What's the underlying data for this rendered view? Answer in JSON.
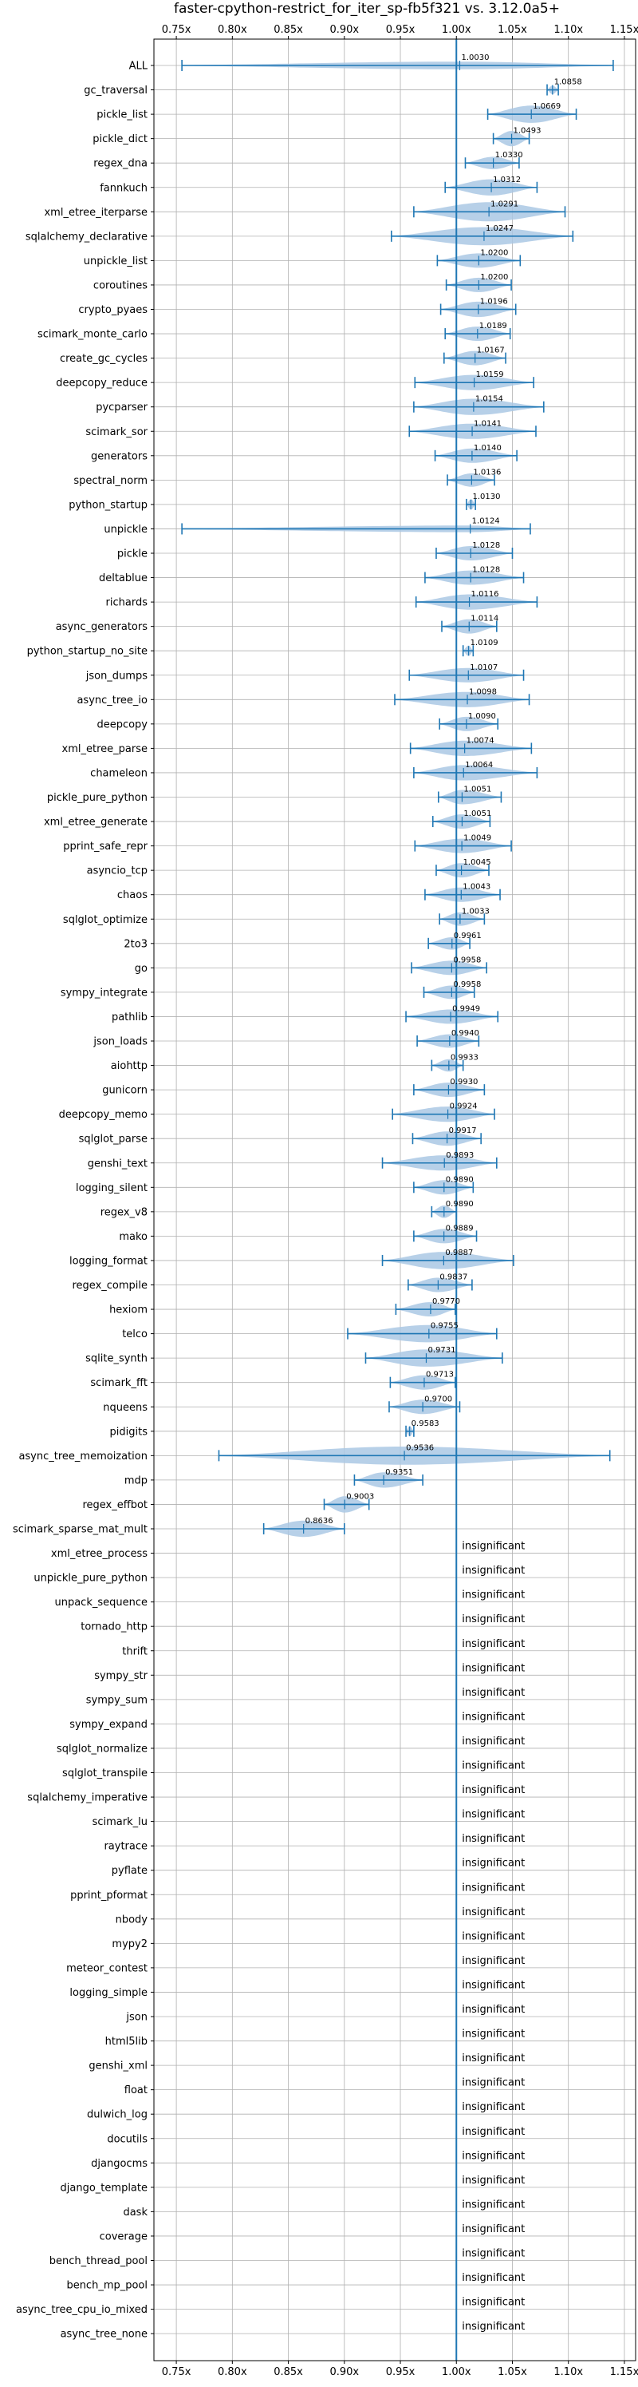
{
  "chart_data": {
    "type": "violin",
    "title": "faster-cpython-restrict_for_iter_sp-fb5f321 vs. 3.12.0a5+",
    "xlabel": "",
    "ylabel": "",
    "xlim": [
      0.73,
      1.16
    ],
    "x_ticks": [
      0.75,
      0.8,
      0.85,
      0.9,
      0.95,
      1.0,
      1.05,
      1.1,
      1.15
    ],
    "x_tick_labels": [
      "0.75x",
      "0.80x",
      "0.85x",
      "0.90x",
      "0.95x",
      "1.00x",
      "1.05x",
      "1.10x",
      "1.15x"
    ],
    "reference_line": 1.0,
    "grid": true,
    "colors": {
      "line": "#1f77b4",
      "fill": "#aac8e4",
      "grid": "#b0b0b0"
    },
    "insignificant_label": "insignificant",
    "benchmarks": [
      {
        "name": "ALL",
        "value": "1.0030",
        "mean": 1.003,
        "min": 0.755,
        "max": 1.14,
        "width": 0.35
      },
      {
        "name": "gc_traversal",
        "value": "1.0858",
        "mean": 1.0858,
        "min": 1.081,
        "max": 1.091,
        "width": 0.4
      },
      {
        "name": "pickle_list",
        "value": "1.0669",
        "mean": 1.0669,
        "min": 1.028,
        "max": 1.107,
        "width": 0.85
      },
      {
        "name": "pickle_dict",
        "value": "1.0493",
        "mean": 1.0493,
        "min": 1.033,
        "max": 1.065,
        "width": 0.75
      },
      {
        "name": "regex_dna",
        "value": "1.0330",
        "mean": 1.033,
        "min": 1.008,
        "max": 1.056,
        "width": 0.6
      },
      {
        "name": "fannkuch",
        "value": "1.0312",
        "mean": 1.0312,
        "min": 0.99,
        "max": 1.072,
        "width": 0.8
      },
      {
        "name": "xml_etree_iterparse",
        "value": "1.0291",
        "mean": 1.0291,
        "min": 0.962,
        "max": 1.097,
        "width": 0.95
      },
      {
        "name": "sqlalchemy_declarative",
        "value": "1.0247",
        "mean": 1.0247,
        "min": 0.942,
        "max": 1.104,
        "width": 0.9
      },
      {
        "name": "unpickle_list",
        "value": "1.0200",
        "mean": 1.02,
        "min": 0.983,
        "max": 1.057,
        "width": 0.7
      },
      {
        "name": "coroutines",
        "value": "1.0200",
        "mean": 1.02,
        "min": 0.991,
        "max": 1.049,
        "width": 0.7
      },
      {
        "name": "crypto_pyaes",
        "value": "1.0196",
        "mean": 1.0196,
        "min": 0.986,
        "max": 1.053,
        "width": 0.75
      },
      {
        "name": "scimark_monte_carlo",
        "value": "1.0189",
        "mean": 1.0189,
        "min": 0.99,
        "max": 1.048,
        "width": 0.7
      },
      {
        "name": "create_gc_cycles",
        "value": "1.0167",
        "mean": 1.0167,
        "min": 0.989,
        "max": 1.044,
        "width": 0.7
      },
      {
        "name": "deepcopy_reduce",
        "value": "1.0159",
        "mean": 1.0159,
        "min": 0.963,
        "max": 1.069,
        "width": 0.75
      },
      {
        "name": "pycparser",
        "value": "1.0154",
        "mean": 1.0154,
        "min": 0.962,
        "max": 1.078,
        "width": 0.8
      },
      {
        "name": "scimark_sor",
        "value": "1.0141",
        "mean": 1.0141,
        "min": 0.958,
        "max": 1.071,
        "width": 0.75
      },
      {
        "name": "generators",
        "value": "1.0140",
        "mean": 1.014,
        "min": 0.981,
        "max": 1.054,
        "width": 0.7
      },
      {
        "name": "spectral_norm",
        "value": "1.0136",
        "mean": 1.0136,
        "min": 0.992,
        "max": 1.034,
        "width": 0.65
      },
      {
        "name": "python_startup",
        "value": "1.0130",
        "mean": 1.013,
        "min": 1.009,
        "max": 1.017,
        "width": 0.5
      },
      {
        "name": "unpickle",
        "value": "1.0124",
        "mean": 1.0124,
        "min": 0.755,
        "max": 1.066,
        "width": 0.3
      },
      {
        "name": "pickle",
        "value": "1.0128",
        "mean": 1.0128,
        "min": 0.982,
        "max": 1.05,
        "width": 0.7
      },
      {
        "name": "deltablue",
        "value": "1.0128",
        "mean": 1.0128,
        "min": 0.972,
        "max": 1.06,
        "width": 0.7
      },
      {
        "name": "richards",
        "value": "1.0116",
        "mean": 1.0116,
        "min": 0.964,
        "max": 1.072,
        "width": 0.75
      },
      {
        "name": "async_generators",
        "value": "1.0114",
        "mean": 1.0114,
        "min": 0.987,
        "max": 1.036,
        "width": 0.7
      },
      {
        "name": "python_startup_no_site",
        "value": "1.0109",
        "mean": 1.0109,
        "min": 1.006,
        "max": 1.015,
        "width": 0.5
      },
      {
        "name": "json_dumps",
        "value": "1.0107",
        "mean": 1.0107,
        "min": 0.958,
        "max": 1.06,
        "width": 0.7
      },
      {
        "name": "async_tree_io",
        "value": "1.0098",
        "mean": 1.0098,
        "min": 0.945,
        "max": 1.065,
        "width": 0.75
      },
      {
        "name": "deepcopy",
        "value": "1.0090",
        "mean": 1.009,
        "min": 0.985,
        "max": 1.037,
        "width": 0.7
      },
      {
        "name": "xml_etree_parse",
        "value": "1.0074",
        "mean": 1.0074,
        "min": 0.959,
        "max": 1.067,
        "width": 0.75
      },
      {
        "name": "chameleon",
        "value": "1.0064",
        "mean": 1.0064,
        "min": 0.962,
        "max": 1.072,
        "width": 0.75
      },
      {
        "name": "pickle_pure_python",
        "value": "1.0051",
        "mean": 1.0051,
        "min": 0.984,
        "max": 1.04,
        "width": 0.7
      },
      {
        "name": "xml_etree_generate",
        "value": "1.0051",
        "mean": 1.0051,
        "min": 0.979,
        "max": 1.03,
        "width": 0.7
      },
      {
        "name": "pprint_safe_repr",
        "value": "1.0049",
        "mean": 1.0049,
        "min": 0.963,
        "max": 1.049,
        "width": 0.7
      },
      {
        "name": "asyncio_tcp",
        "value": "1.0045",
        "mean": 1.0045,
        "min": 0.982,
        "max": 1.029,
        "width": 0.7
      },
      {
        "name": "chaos",
        "value": "1.0043",
        "mean": 1.0043,
        "min": 0.972,
        "max": 1.039,
        "width": 0.7
      },
      {
        "name": "sqlglot_optimize",
        "value": "1.0033",
        "mean": 1.0033,
        "min": 0.985,
        "max": 1.025,
        "width": 0.65
      },
      {
        "name": "2to3",
        "value": "0.9961",
        "mean": 0.9961,
        "min": 0.975,
        "max": 1.012,
        "width": 0.6
      },
      {
        "name": "go",
        "value": "0.9958",
        "mean": 0.9958,
        "min": 0.96,
        "max": 1.027,
        "width": 0.7
      },
      {
        "name": "sympy_integrate",
        "value": "0.9958",
        "mean": 0.9958,
        "min": 0.971,
        "max": 1.016,
        "width": 0.65
      },
      {
        "name": "pathlib",
        "value": "0.9949",
        "mean": 0.9949,
        "min": 0.955,
        "max": 1.037,
        "width": 0.7
      },
      {
        "name": "json_loads",
        "value": "0.9940",
        "mean": 0.994,
        "min": 0.965,
        "max": 1.02,
        "width": 0.65
      },
      {
        "name": "aiohttp",
        "value": "0.9933",
        "mean": 0.9933,
        "min": 0.978,
        "max": 1.006,
        "width": 0.6
      },
      {
        "name": "gunicorn",
        "value": "0.9930",
        "mean": 0.993,
        "min": 0.962,
        "max": 1.025,
        "width": 0.7
      },
      {
        "name": "deepcopy_memo",
        "value": "0.9924",
        "mean": 0.9924,
        "min": 0.943,
        "max": 1.034,
        "width": 0.75
      },
      {
        "name": "sqlglot_parse",
        "value": "0.9917",
        "mean": 0.9917,
        "min": 0.961,
        "max": 1.022,
        "width": 0.7
      },
      {
        "name": "genshi_text",
        "value": "0.9893",
        "mean": 0.9893,
        "min": 0.934,
        "max": 1.036,
        "width": 0.75
      },
      {
        "name": "logging_silent",
        "value": "0.9890",
        "mean": 0.989,
        "min": 0.962,
        "max": 1.015,
        "width": 0.7
      },
      {
        "name": "regex_v8",
        "value": "0.9890",
        "mean": 0.989,
        "min": 0.978,
        "max": 1.0,
        "width": 0.6
      },
      {
        "name": "mako",
        "value": "0.9889",
        "mean": 0.9889,
        "min": 0.962,
        "max": 1.018,
        "width": 0.7
      },
      {
        "name": "logging_format",
        "value": "0.9887",
        "mean": 0.9887,
        "min": 0.934,
        "max": 1.051,
        "width": 0.85
      },
      {
        "name": "regex_compile",
        "value": "0.9837",
        "mean": 0.9837,
        "min": 0.957,
        "max": 1.014,
        "width": 0.7
      },
      {
        "name": "hexiom",
        "value": "0.9770",
        "mean": 0.977,
        "min": 0.946,
        "max": 0.999,
        "width": 0.7
      },
      {
        "name": "telco",
        "value": "0.9755",
        "mean": 0.9755,
        "min": 0.903,
        "max": 1.036,
        "width": 0.85
      },
      {
        "name": "sqlite_synth",
        "value": "0.9731",
        "mean": 0.9731,
        "min": 0.919,
        "max": 1.041,
        "width": 0.85
      },
      {
        "name": "scimark_fft",
        "value": "0.9713",
        "mean": 0.9713,
        "min": 0.941,
        "max": 0.999,
        "width": 0.7
      },
      {
        "name": "nqueens",
        "value": "0.9700",
        "mean": 0.97,
        "min": 0.94,
        "max": 1.003,
        "width": 0.7
      },
      {
        "name": "pidigits",
        "value": "0.9583",
        "mean": 0.9583,
        "min": 0.955,
        "max": 0.962,
        "width": 0.5
      },
      {
        "name": "async_tree_memoization",
        "value": "0.9536",
        "mean": 0.9536,
        "min": 0.788,
        "max": 1.137,
        "width": 0.9
      },
      {
        "name": "mdp",
        "value": "0.9351",
        "mean": 0.9351,
        "min": 0.909,
        "max": 0.97,
        "width": 0.75
      },
      {
        "name": "regex_effbot",
        "value": "0.9003",
        "mean": 0.9003,
        "min": 0.882,
        "max": 0.922,
        "width": 0.8
      },
      {
        "name": "scimark_sparse_mat_mult",
        "value": "0.8636",
        "mean": 0.8636,
        "min": 0.828,
        "max": 0.9,
        "width": 0.8
      },
      {
        "name": "xml_etree_process",
        "insignificant": true
      },
      {
        "name": "unpickle_pure_python",
        "insignificant": true
      },
      {
        "name": "unpack_sequence",
        "insignificant": true
      },
      {
        "name": "tornado_http",
        "insignificant": true
      },
      {
        "name": "thrift",
        "insignificant": true
      },
      {
        "name": "sympy_str",
        "insignificant": true
      },
      {
        "name": "sympy_sum",
        "insignificant": true
      },
      {
        "name": "sympy_expand",
        "insignificant": true
      },
      {
        "name": "sqlglot_normalize",
        "insignificant": true
      },
      {
        "name": "sqlglot_transpile",
        "insignificant": true
      },
      {
        "name": "sqlalchemy_imperative",
        "insignificant": true
      },
      {
        "name": "scimark_lu",
        "insignificant": true
      },
      {
        "name": "raytrace",
        "insignificant": true
      },
      {
        "name": "pyflate",
        "insignificant": true
      },
      {
        "name": "pprint_pformat",
        "insignificant": true
      },
      {
        "name": "nbody",
        "insignificant": true
      },
      {
        "name": "mypy2",
        "insignificant": true
      },
      {
        "name": "meteor_contest",
        "insignificant": true
      },
      {
        "name": "logging_simple",
        "insignificant": true
      },
      {
        "name": "json",
        "insignificant": true
      },
      {
        "name": "html5lib",
        "insignificant": true
      },
      {
        "name": "genshi_xml",
        "insignificant": true
      },
      {
        "name": "float",
        "insignificant": true
      },
      {
        "name": "dulwich_log",
        "insignificant": true
      },
      {
        "name": "docutils",
        "insignificant": true
      },
      {
        "name": "djangocms",
        "insignificant": true
      },
      {
        "name": "django_template",
        "insignificant": true
      },
      {
        "name": "dask",
        "insignificant": true
      },
      {
        "name": "coverage",
        "insignificant": true
      },
      {
        "name": "bench_thread_pool",
        "insignificant": true
      },
      {
        "name": "bench_mp_pool",
        "insignificant": true
      },
      {
        "name": "async_tree_cpu_io_mixed",
        "insignificant": true
      },
      {
        "name": "async_tree_none",
        "insignificant": true
      }
    ]
  }
}
